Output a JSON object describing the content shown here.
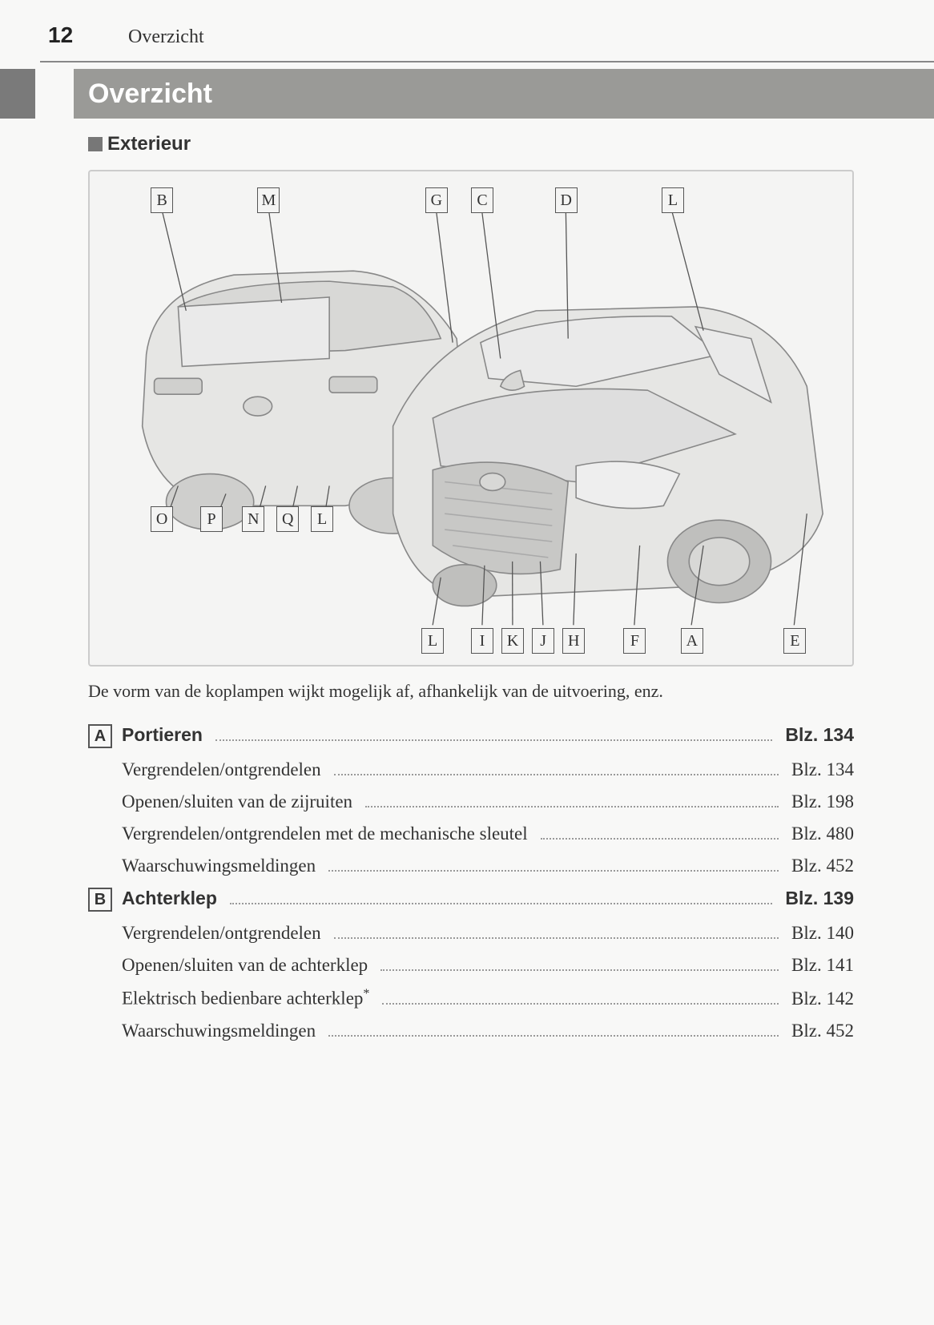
{
  "header": {
    "page_number": "12",
    "running_title": "Overzicht"
  },
  "tab": {
    "title": "Overzicht",
    "accent_color": "#7a7a7a",
    "bar_color": "#9a9a97",
    "title_color": "#ffffff"
  },
  "subhead": {
    "bullet_color": "#777777",
    "text": "Exterieur"
  },
  "figure": {
    "border_color": "#cccccc",
    "bg_color": "#f4f4f3",
    "callouts_top": [
      {
        "letter": "B",
        "left_pct": 8
      },
      {
        "letter": "M",
        "left_pct": 22
      },
      {
        "letter": "G",
        "left_pct": 44
      },
      {
        "letter": "C",
        "left_pct": 50
      },
      {
        "letter": "D",
        "left_pct": 61
      },
      {
        "letter": "L",
        "left_pct": 75
      }
    ],
    "callouts_mid": [
      {
        "letter": "O",
        "left_pct": 8
      },
      {
        "letter": "P",
        "left_pct": 14.5
      },
      {
        "letter": "N",
        "left_pct": 20
      },
      {
        "letter": "Q",
        "left_pct": 24.5
      },
      {
        "letter": "L",
        "left_pct": 29
      }
    ],
    "callouts_bot": [
      {
        "letter": "L",
        "left_pct": 43.5
      },
      {
        "letter": "I",
        "left_pct": 50
      },
      {
        "letter": "K",
        "left_pct": 54
      },
      {
        "letter": "J",
        "left_pct": 58
      },
      {
        "letter": "H",
        "left_pct": 62
      },
      {
        "letter": "F",
        "left_pct": 70
      },
      {
        "letter": "A",
        "left_pct": 77.5
      },
      {
        "letter": "E",
        "left_pct": 91
      }
    ],
    "car_stroke": "#888888",
    "car_fill": "#e6e6e4",
    "car_shadow": "#cfcfcd",
    "leader_color": "#555555"
  },
  "note": "De vorm van de koplampen wijkt mogelijk af, afhankelijk van de uitvoering, enz.",
  "toc": {
    "page_prefix": "Blz. ",
    "groups": [
      {
        "badge": "A",
        "head": {
          "label": "Portieren",
          "page": "134"
        },
        "items": [
          {
            "label": "Vergrendelen/ontgrendelen",
            "page": "134"
          },
          {
            "label": "Openen/sluiten van de zijruiten",
            "page": "198"
          },
          {
            "label": "Vergrendelen/ontgrendelen met de mechanische sleutel",
            "page": "480"
          },
          {
            "label": "Waarschuwingsmeldingen",
            "page": "452"
          }
        ]
      },
      {
        "badge": "B",
        "head": {
          "label": "Achterklep",
          "page": "139"
        },
        "items": [
          {
            "label": "Vergrendelen/ontgrendelen",
            "page": "140"
          },
          {
            "label": "Openen/sluiten van de achterklep",
            "page": "141"
          },
          {
            "label": "Elektrisch bedienbare achterklep",
            "asterisk": true,
            "page": "142"
          },
          {
            "label": "Waarschuwingsmeldingen",
            "page": "452"
          }
        ]
      }
    ]
  }
}
